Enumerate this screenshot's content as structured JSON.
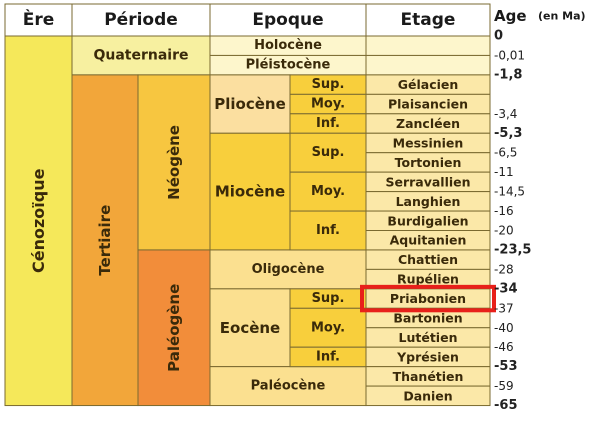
{
  "headers": {
    "ere": "Ère",
    "periode": "Période",
    "epoque": "Epoque",
    "etage": "Etage",
    "age": "Age",
    "age_unit": "(en Ma)"
  },
  "colors": {
    "cenozoique": "#f5e85a",
    "quaternaire": "#f7f0a0",
    "tertiaire": "#f2a63a",
    "neogene": "#f7c640",
    "paleogene": "#f28d3a",
    "pliocene": "#fbdfa0",
    "miocene": "#f8cf3c",
    "paleogene_epoch": "#fbe090",
    "subdiv": "#f8cf3c",
    "stage": "#fbe8a8",
    "quat_stage": "#fdf6cc",
    "border": "#7a6a30",
    "highlight": "#e8201a"
  },
  "ere": {
    "label": "Cénozoïque",
    "rows": [
      0,
      19
    ]
  },
  "periods": [
    {
      "id": "quaternaire",
      "label": "Quaternaire",
      "rows": [
        0,
        2
      ],
      "vertical": false,
      "color_key": "quaternaire"
    },
    {
      "id": "tertiaire",
      "label": "Tertiaire",
      "rows": [
        2,
        19
      ],
      "vertical": true,
      "color_key": "tertiaire"
    }
  ],
  "subperiods": [
    {
      "id": "neogene",
      "label": "Néogène",
      "rows": [
        2,
        11
      ],
      "color_key": "neogene"
    },
    {
      "id": "paleogene",
      "label": "Paléogène",
      "rows": [
        11,
        19
      ],
      "color_key": "paleogene"
    }
  ],
  "epochs": [
    {
      "label": "Holocène",
      "rows": [
        0,
        1
      ],
      "full": true,
      "color_key": "quat_stage"
    },
    {
      "label": "Pléistocène",
      "rows": [
        1,
        2
      ],
      "full": true,
      "color_key": "quat_stage"
    },
    {
      "label": "Pliocène",
      "rows": [
        2,
        5
      ],
      "full": false,
      "color_key": "pliocene"
    },
    {
      "label": "Miocène",
      "rows": [
        5,
        11
      ],
      "full": false,
      "color_key": "miocene"
    },
    {
      "label": "Oligocène",
      "rows": [
        11,
        13
      ],
      "full": true,
      "color_key": "paleogene_epoch"
    },
    {
      "label": "Eocène",
      "rows": [
        13,
        17
      ],
      "full": false,
      "color_key": "paleogene_epoch"
    },
    {
      "label": "Paléocène",
      "rows": [
        17,
        19
      ],
      "full": true,
      "color_key": "paleogene_epoch"
    }
  ],
  "subdivisions": [
    {
      "label": "Sup.",
      "rows": [
        2,
        3
      ]
    },
    {
      "label": "Moy.",
      "rows": [
        3,
        4
      ]
    },
    {
      "label": "Inf.",
      "rows": [
        4,
        5
      ]
    },
    {
      "label": "Sup.",
      "rows": [
        5,
        7
      ]
    },
    {
      "label": "Moy.",
      "rows": [
        7,
        9
      ]
    },
    {
      "label": "Inf.",
      "rows": [
        9,
        11
      ]
    },
    {
      "label": "Sup.",
      "rows": [
        13,
        14
      ]
    },
    {
      "label": "Moy.",
      "rows": [
        14,
        16
      ]
    },
    {
      "label": "Inf.",
      "rows": [
        16,
        17
      ]
    }
  ],
  "stages": [
    {
      "label": "",
      "row": 0,
      "color_key": "quat_stage"
    },
    {
      "label": "",
      "row": 1,
      "color_key": "quat_stage"
    },
    {
      "label": "Gélacien",
      "row": 2
    },
    {
      "label": "Plaisancien",
      "row": 3
    },
    {
      "label": "Zancléen",
      "row": 4
    },
    {
      "label": "Messinien",
      "row": 5
    },
    {
      "label": "Tortonien",
      "row": 6
    },
    {
      "label": "Serravallien",
      "row": 7
    },
    {
      "label": "Langhien",
      "row": 8
    },
    {
      "label": "Burdigalien",
      "row": 9
    },
    {
      "label": "Aquitanien",
      "row": 10
    },
    {
      "label": "Chattien",
      "row": 11
    },
    {
      "label": "Rupélien",
      "row": 12
    },
    {
      "label": "Priabonien",
      "row": 13,
      "highlight": true
    },
    {
      "label": "Bartonien",
      "row": 14
    },
    {
      "label": "Lutétien",
      "row": 15
    },
    {
      "label": "Yprésien",
      "row": 16
    },
    {
      "label": "Thanétien",
      "row": 17
    },
    {
      "label": "Danien",
      "row": 18
    }
  ],
  "ages": [
    {
      "label": "0",
      "row": 0,
      "bold": true
    },
    {
      "label": "-0,01",
      "row": 1,
      "bold": false
    },
    {
      "label": "-1,8",
      "row": 2,
      "bold": true
    },
    {
      "label": "-3,4",
      "row": 4,
      "bold": false
    },
    {
      "label": "-5,3",
      "row": 5,
      "bold": true
    },
    {
      "label": "-6,5",
      "row": 6,
      "bold": false
    },
    {
      "label": "-11",
      "row": 7,
      "bold": false
    },
    {
      "label": "-14,5",
      "row": 8,
      "bold": false
    },
    {
      "label": "-16",
      "row": 9,
      "bold": false
    },
    {
      "label": "-20",
      "row": 10,
      "bold": false
    },
    {
      "label": "-23,5",
      "row": 11,
      "bold": true
    },
    {
      "label": "-28",
      "row": 12,
      "bold": false
    },
    {
      "label": "-34",
      "row": 13,
      "bold": true
    },
    {
      "label": "-37",
      "row": 14,
      "bold": false
    },
    {
      "label": "-40",
      "row": 15,
      "bold": false
    },
    {
      "label": "-46",
      "row": 16,
      "bold": false
    },
    {
      "label": "-53",
      "row": 17,
      "bold": true
    },
    {
      "label": "-59",
      "row": 18,
      "bold": false
    },
    {
      "label": "-65",
      "row": 19,
      "bold": true
    }
  ]
}
